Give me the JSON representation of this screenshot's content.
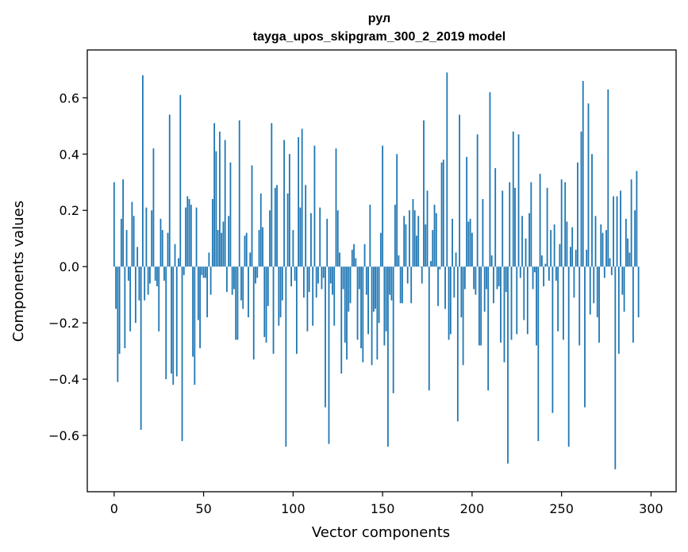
{
  "chart_data": {
    "type": "bar",
    "title": "рул",
    "subtitle": "tayga_upos_skipgram_300_2_2019 model",
    "xlabel": "Vector components",
    "ylabel": "Components values",
    "xlim": [
      -15,
      314
    ],
    "ylim": [
      -0.8,
      0.77
    ],
    "xticks": [
      0,
      50,
      100,
      150,
      200,
      250,
      300
    ],
    "yticks": [
      -0.6,
      -0.4,
      -0.2,
      0.0,
      0.2,
      0.4,
      0.6
    ],
    "ytick_labels": [
      "−0.6",
      "−0.4",
      "−0.2",
      "0.0",
      "0.2",
      "0.4",
      "0.6"
    ],
    "bar_color": "#1f77b4",
    "grid": false,
    "values": [
      0.3,
      -0.15,
      -0.41,
      -0.31,
      0.17,
      0.31,
      -0.29,
      0.13,
      -0.05,
      -0.23,
      0.23,
      0.18,
      -0.2,
      0.07,
      -0.12,
      -0.58,
      0.68,
      -0.12,
      0.21,
      -0.1,
      -0.06,
      0.2,
      0.42,
      -0.05,
      -0.07,
      -0.23,
      0.17,
      0.13,
      -0.05,
      -0.4,
      0.12,
      0.54,
      -0.38,
      -0.42,
      0.08,
      -0.39,
      0.03,
      0.61,
      -0.62,
      -0.03,
      0.21,
      0.25,
      0.24,
      0.22,
      -0.32,
      -0.42,
      0.21,
      -0.19,
      -0.29,
      -0.03,
      -0.04,
      -0.04,
      -0.18,
      0.05,
      -0.1,
      0.24,
      0.51,
      0.41,
      0.13,
      0.48,
      0.12,
      0.16,
      0.45,
      -0.09,
      0.18,
      0.37,
      -0.1,
      -0.08,
      -0.26,
      -0.26,
      0.52,
      -0.12,
      -0.15,
      0.11,
      0.12,
      -0.18,
      0.05,
      0.36,
      -0.33,
      -0.06,
      -0.04,
      0.13,
      0.26,
      0.14,
      -0.25,
      -0.27,
      -0.14,
      0.2,
      0.51,
      -0.31,
      0.28,
      0.29,
      -0.21,
      -0.18,
      -0.12,
      0.45,
      -0.64,
      0.26,
      0.4,
      -0.07,
      0.13,
      -0.05,
      -0.31,
      0.46,
      0.21,
      0.49,
      -0.11,
      0.29,
      -0.23,
      -0.09,
      0.19,
      -0.21,
      0.43,
      -0.11,
      -0.06,
      0.21,
      -0.08,
      -0.04,
      -0.5,
      0.17,
      -0.63,
      -0.06,
      -0.1,
      -0.21,
      0.42,
      0.2,
      0.05,
      -0.38,
      -0.08,
      -0.27,
      -0.33,
      -0.16,
      -0.13,
      0.06,
      0.08,
      0.03,
      -0.26,
      -0.08,
      -0.29,
      -0.34,
      0.08,
      -0.1,
      -0.24,
      0.22,
      -0.35,
      -0.16,
      -0.15,
      -0.33,
      -0.2,
      0.12,
      0.43,
      -0.28,
      -0.23,
      -0.64,
      -0.1,
      -0.12,
      -0.45,
      0.22,
      0.4,
      0.04,
      -0.13,
      -0.13,
      0.18,
      0.15,
      -0.06,
      0.2,
      -0.13,
      0.24,
      0.2,
      0.11,
      0.18,
      0.0,
      -0.06,
      0.52,
      0.15,
      0.27,
      -0.44,
      0.02,
      0.13,
      0.22,
      0.19,
      -0.14,
      -0.01,
      0.37,
      0.38,
      -0.15,
      0.69,
      -0.26,
      -0.24,
      0.17,
      -0.11,
      0.05,
      -0.55,
      0.54,
      -0.18,
      -0.35,
      -0.08,
      0.39,
      0.16,
      0.17,
      0.12,
      -0.08,
      -0.1,
      0.47,
      -0.28,
      -0.28,
      0.24,
      -0.16,
      -0.08,
      -0.44,
      0.62,
      0.04,
      -0.13,
      0.35,
      -0.08,
      -0.07,
      -0.27,
      0.27,
      -0.34,
      -0.09,
      -0.7,
      0.3,
      -0.26,
      0.48,
      0.28,
      -0.24,
      0.47,
      -0.04,
      0.18,
      -0.19,
      0.1,
      -0.24,
      0.19,
      0.3,
      -0.08,
      -0.02,
      -0.28,
      -0.62,
      0.33,
      0.04,
      -0.07,
      0.01,
      0.28,
      -0.05,
      0.13,
      -0.52,
      0.15,
      -0.05,
      -0.23,
      0.08,
      0.31,
      -0.26,
      0.3,
      0.16,
      -0.64,
      0.07,
      0.14,
      -0.11,
      0.06,
      0.37,
      -0.28,
      0.48,
      0.66,
      -0.5,
      0.06,
      0.58,
      -0.17,
      0.4,
      -0.13,
      0.18,
      -0.18,
      -0.27,
      0.15,
      0.12,
      -0.04,
      0.13,
      0.63,
      0.03,
      -0.03,
      0.25,
      -0.72,
      0.25,
      -0.31,
      0.27,
      -0.1,
      -0.16,
      0.17,
      0.1,
      0.05,
      0.31,
      -0.27,
      0.2,
      0.34,
      -0.18
    ]
  }
}
